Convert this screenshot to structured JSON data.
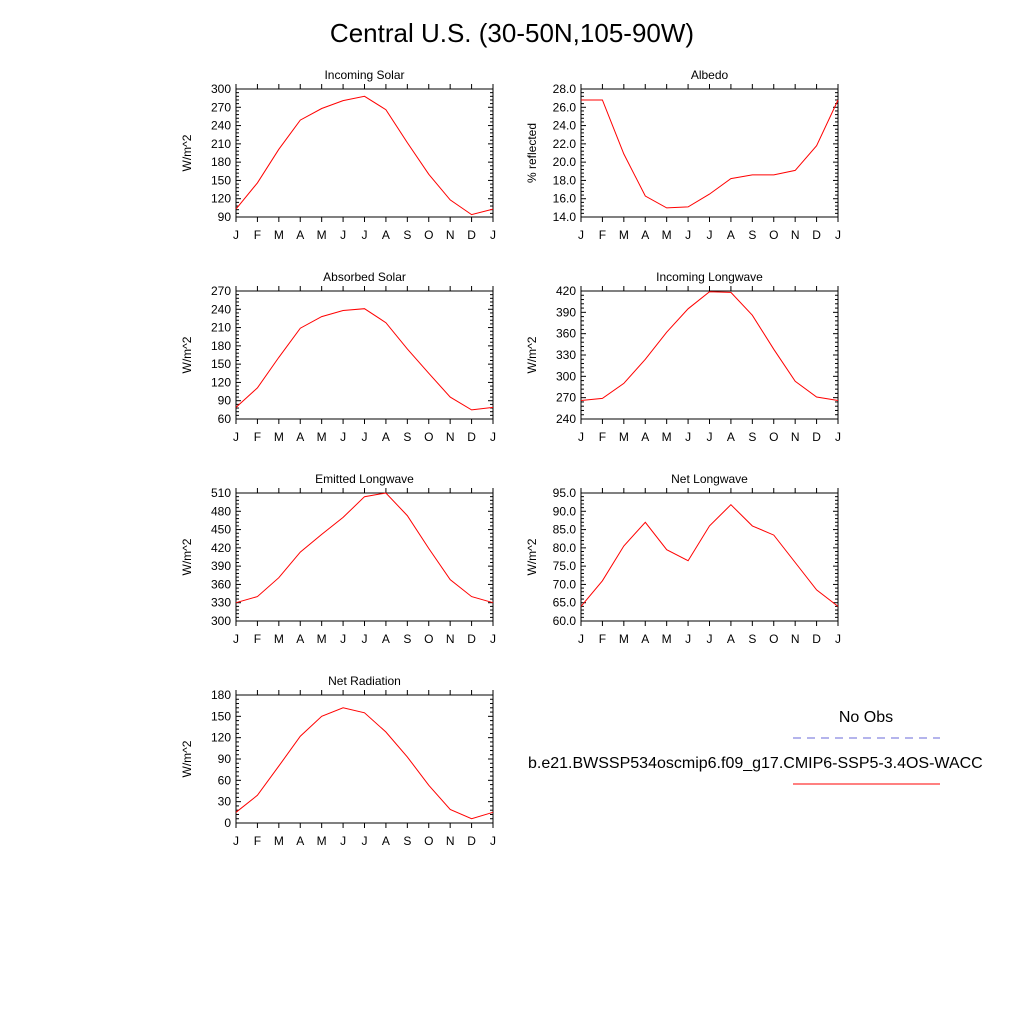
{
  "page": {
    "title": "Central U.S. (30-50N,105-90W)"
  },
  "colors": {
    "model_line": "#ff0000",
    "obs_line": "#6a6ad8",
    "axis": "#000000"
  },
  "legend": {
    "obs_label": "No Obs",
    "model_label": "b.e21.BWSSP534oscmip6.f09_g17.CMIP6-SSP5-3.4OS-WACC"
  },
  "chart_data": [
    {
      "type": "line",
      "title": "Incoming Solar",
      "ylabel": "W/m^2",
      "categories": [
        "J",
        "F",
        "M",
        "A",
        "M",
        "J",
        "J",
        "A",
        "S",
        "O",
        "N",
        "D",
        "J"
      ],
      "ylim": [
        90,
        300
      ],
      "yticks": [
        "90",
        "120",
        "150",
        "180",
        "210",
        "240",
        "270",
        "300"
      ],
      "series": [
        {
          "values": [
            103,
            146,
            201,
            249,
            268,
            281,
            288,
            266,
            212,
            160,
            118,
            94,
            103
          ]
        }
      ]
    },
    {
      "type": "line",
      "title": "Albedo",
      "ylabel": "% reflected",
      "categories": [
        "J",
        "F",
        "M",
        "A",
        "M",
        "J",
        "J",
        "A",
        "S",
        "O",
        "N",
        "D",
        "J"
      ],
      "ylim": [
        14.0,
        28.0
      ],
      "yticks": [
        "14.0",
        "16.0",
        "18.0",
        "20.0",
        "22.0",
        "24.0",
        "26.0",
        "28.0"
      ],
      "series": [
        {
          "values": [
            26.8,
            26.8,
            20.9,
            16.3,
            15.0,
            15.1,
            16.5,
            18.2,
            18.6,
            18.6,
            19.1,
            21.8,
            26.8
          ]
        }
      ]
    },
    {
      "type": "line",
      "title": "Absorbed Solar",
      "ylabel": "W/m^2",
      "categories": [
        "J",
        "F",
        "M",
        "A",
        "M",
        "J",
        "J",
        "A",
        "S",
        "O",
        "N",
        "D",
        "J"
      ],
      "ylim": [
        60,
        270
      ],
      "yticks": [
        "60",
        "90",
        "120",
        "150",
        "180",
        "210",
        "240",
        "270"
      ],
      "series": [
        {
          "values": [
            79,
            111,
            161,
            209,
            228,
            238,
            241,
            218,
            175,
            135,
            96,
            75,
            79
          ]
        }
      ]
    },
    {
      "type": "line",
      "title": "Incoming Longwave",
      "ylabel": "W/m^2",
      "categories": [
        "J",
        "F",
        "M",
        "A",
        "M",
        "J",
        "J",
        "A",
        "S",
        "O",
        "N",
        "D",
        "J"
      ],
      "ylim": [
        240,
        420
      ],
      "yticks": [
        "240",
        "270",
        "300",
        "330",
        "360",
        "390",
        "420"
      ],
      "series": [
        {
          "values": [
            266,
            269,
            290,
            324,
            362,
            395,
            419,
            418,
            386,
            338,
            293,
            271,
            266
          ]
        }
      ]
    },
    {
      "type": "line",
      "title": "Emitted Longwave",
      "ylabel": "W/m^2",
      "categories": [
        "J",
        "F",
        "M",
        "A",
        "M",
        "J",
        "J",
        "A",
        "S",
        "O",
        "N",
        "D",
        "J"
      ],
      "ylim": [
        300,
        510
      ],
      "yticks": [
        "300",
        "330",
        "360",
        "390",
        "420",
        "450",
        "480",
        "510"
      ],
      "series": [
        {
          "values": [
            330,
            340,
            371,
            413,
            442,
            470,
            504,
            510,
            473,
            419,
            368,
            340,
            330
          ]
        }
      ]
    },
    {
      "type": "line",
      "title": "Net Longwave",
      "ylabel": "W/m^2",
      "categories": [
        "J",
        "F",
        "M",
        "A",
        "M",
        "J",
        "J",
        "A",
        "S",
        "O",
        "N",
        "D",
        "J"
      ],
      "ylim": [
        60.0,
        95.0
      ],
      "yticks": [
        "60.0",
        "65.0",
        "70.0",
        "75.0",
        "80.0",
        "85.0",
        "90.0",
        "95.0"
      ],
      "series": [
        {
          "values": [
            64.0,
            71.0,
            80.5,
            87.0,
            79.5,
            76.5,
            86.0,
            91.8,
            86.0,
            83.5,
            76.0,
            68.5,
            64.0
          ]
        }
      ]
    },
    {
      "type": "line",
      "title": "Net Radiation",
      "ylabel": "W/m^2",
      "categories": [
        "J",
        "F",
        "M",
        "A",
        "M",
        "J",
        "J",
        "A",
        "S",
        "O",
        "N",
        "D",
        "J"
      ],
      "ylim": [
        0,
        180
      ],
      "yticks": [
        "0",
        "30",
        "60",
        "90",
        "120",
        "150",
        "180"
      ],
      "series": [
        {
          "values": [
            15,
            39,
            80,
            122,
            150,
            162,
            155,
            128,
            93,
            53,
            19,
            6,
            15
          ]
        }
      ]
    }
  ]
}
